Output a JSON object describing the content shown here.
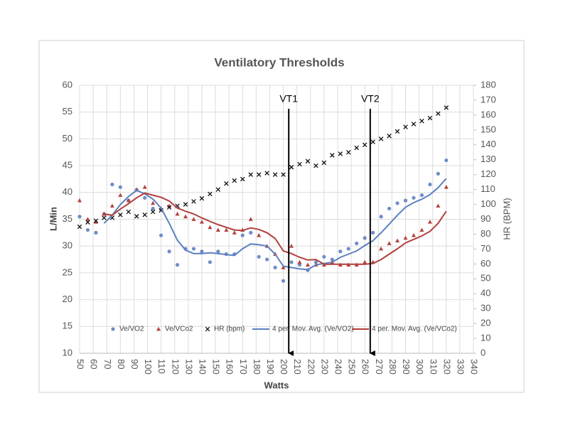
{
  "chart_data": {
    "type": "scatter",
    "title": "Ventilatory Thresholds",
    "x_label": "Watts",
    "y_label": "L/Min",
    "y2_label": "HR (BPM)",
    "x": [
      50,
      56,
      62,
      68,
      74,
      80,
      86,
      92,
      98,
      104,
      110,
      116,
      122,
      128,
      134,
      140,
      146,
      152,
      158,
      164,
      170,
      176,
      182,
      188,
      194,
      200,
      206,
      212,
      218,
      224,
      230,
      236,
      242,
      248,
      254,
      260,
      266,
      272,
      278,
      284,
      290,
      296,
      302,
      308,
      314,
      320
    ],
    "series": [
      {
        "name": "Ve/VO2",
        "color": "#6d8dc7",
        "marker": "circle",
        "values": [
          35.5,
          33,
          32.5,
          36,
          41.5,
          41,
          38.5,
          40.5,
          39,
          37,
          32,
          29,
          26.5,
          29.5,
          29.5,
          29,
          27,
          29,
          28.5,
          28.5,
          32,
          32.5,
          28,
          27.5,
          26,
          23.5,
          27,
          26.5,
          25.5,
          27,
          28,
          27.5,
          29,
          29.5,
          30.5,
          31.5,
          32.5,
          35.5,
          37,
          38,
          38.5,
          39,
          39.5,
          41.5,
          43.5,
          46
        ]
      },
      {
        "name": "Ve/VCo2",
        "color": "#b5423f",
        "marker": "triangle",
        "values": [
          38.5,
          35,
          34.5,
          36,
          37.5,
          39.5,
          38.5,
          40.5,
          41,
          38,
          37,
          37.5,
          36,
          35.5,
          35,
          34.5,
          33.5,
          33,
          33,
          32.5,
          33,
          35,
          32,
          30,
          28.5,
          26,
          30,
          27,
          26.5,
          26.5,
          26.5,
          27,
          26.5,
          26.5,
          26.5,
          27,
          27,
          29.5,
          30.5,
          31,
          31.5,
          32,
          33,
          34.5,
          37.5,
          41
        ]
      },
      {
        "name": "HR (bpm)",
        "color": "#111111",
        "marker": "x",
        "axis": "y2",
        "values": [
          85,
          88,
          89,
          91,
          91,
          93,
          95,
          92,
          93,
          95,
          96,
          98,
          99,
          100,
          102,
          104,
          107,
          110,
          114,
          116,
          117,
          120,
          120,
          121,
          120,
          120,
          125,
          127,
          129,
          126,
          128,
          133,
          134,
          135,
          138,
          140,
          142,
          144,
          146,
          149,
          152,
          154,
          156,
          158,
          161,
          165
        ]
      },
      {
        "name": "4 per. Mov. Avg. (Ve/VO2)",
        "color": "#5b80c0",
        "marker": "line",
        "values": [
          null,
          null,
          null,
          34.25,
          35.75,
          37.75,
          39.25,
          40.4,
          39.75,
          38.75,
          37.1,
          34.25,
          31.1,
          29.25,
          28.6,
          28.6,
          28.75,
          28.6,
          28.4,
          28.25,
          29.5,
          30.4,
          30.25,
          30,
          28.5,
          26.25,
          26,
          25.75,
          25.6,
          26.5,
          26.75,
          27,
          27.9,
          28.5,
          29.1,
          30.1,
          31,
          32.5,
          34.1,
          35.75,
          37.25,
          38.1,
          38.75,
          39.6,
          40.9,
          42.6
        ]
      },
      {
        "name": "4 per. Mov. Avg. (Ve/VCo2)",
        "color": "#b0403c",
        "marker": "line",
        "values": [
          null,
          null,
          null,
          36,
          35.75,
          36.9,
          37.9,
          39,
          39.9,
          39.5,
          39.1,
          38.4,
          37.1,
          36.5,
          36,
          35.25,
          34.6,
          34,
          33.5,
          33,
          32.9,
          33.4,
          33.1,
          32.5,
          31.4,
          29.1,
          28.6,
          27.9,
          27.4,
          27.5,
          26.6,
          26.6,
          26.6,
          26.6,
          26.6,
          26.6,
          26.75,
          27.5,
          28.5,
          29.5,
          30.6,
          31.25,
          31.9,
          32.75,
          34.25,
          36.5
        ]
      }
    ],
    "annotations": [
      {
        "text": "VT1",
        "x": 204
      },
      {
        "text": "VT2",
        "x": 264
      }
    ],
    "xlim": [
      50,
      340
    ],
    "xticks": [
      50,
      60,
      70,
      80,
      90,
      100,
      110,
      120,
      130,
      140,
      150,
      160,
      170,
      180,
      190,
      200,
      210,
      220,
      230,
      240,
      250,
      260,
      270,
      280,
      290,
      300,
      310,
      320,
      330,
      340
    ],
    "ylim": [
      10,
      60
    ],
    "yticks": [
      10,
      15,
      20,
      25,
      30,
      35,
      40,
      45,
      50,
      55,
      60
    ],
    "y2lim": [
      0,
      180
    ],
    "y2ticks": [
      0,
      10,
      20,
      30,
      40,
      50,
      60,
      70,
      80,
      90,
      100,
      110,
      120,
      130,
      140,
      150,
      160,
      170,
      180
    ],
    "grid": true,
    "legend": "bottom"
  }
}
